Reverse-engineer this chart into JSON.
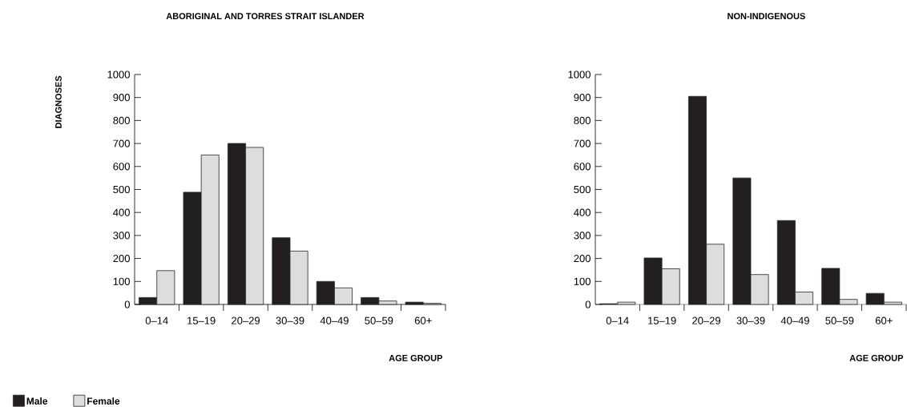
{
  "chart_data": [
    {
      "type": "bar",
      "title": "ABORIGINAL AND TORRES STRAIT ISLANDER",
      "xlabel": "AGE GROUP",
      "ylabel": "DIAGNOSES",
      "categories": [
        "0–14",
        "15–19",
        "20–29",
        "30–39",
        "40–49",
        "50–59",
        "60+"
      ],
      "series": [
        {
          "name": "Male",
          "color": "#231f20",
          "values": [
            30,
            488,
            700,
            290,
            100,
            30,
            10
          ]
        },
        {
          "name": "Female",
          "color": "#dcdddf",
          "values": [
            147,
            650,
            683,
            232,
            72,
            15,
            5
          ]
        }
      ],
      "ylim": [
        0,
        1000
      ],
      "yticks": [
        0,
        100,
        200,
        300,
        400,
        500,
        600,
        700,
        800,
        900,
        1000
      ],
      "legend": "bottom"
    },
    {
      "type": "bar",
      "title": "NON-INDIGENOUS",
      "xlabel": "AGE GROUP",
      "categories": [
        "0–14",
        "15–19",
        "20–29",
        "30–39",
        "40–49",
        "50–59",
        "60+"
      ],
      "series": [
        {
          "color": "#231f20",
          "values": [
            3,
            202,
            905,
            550,
            365,
            157,
            48
          ]
        },
        {
          "color": "#dcdddf",
          "values": [
            10,
            155,
            262,
            130,
            54,
            22,
            10
          ]
        }
      ],
      "ylim": [
        0,
        1000
      ],
      "yticks": [
        0,
        100,
        200,
        300,
        400,
        500,
        600,
        700,
        800,
        900,
        1000
      ]
    }
  ]
}
